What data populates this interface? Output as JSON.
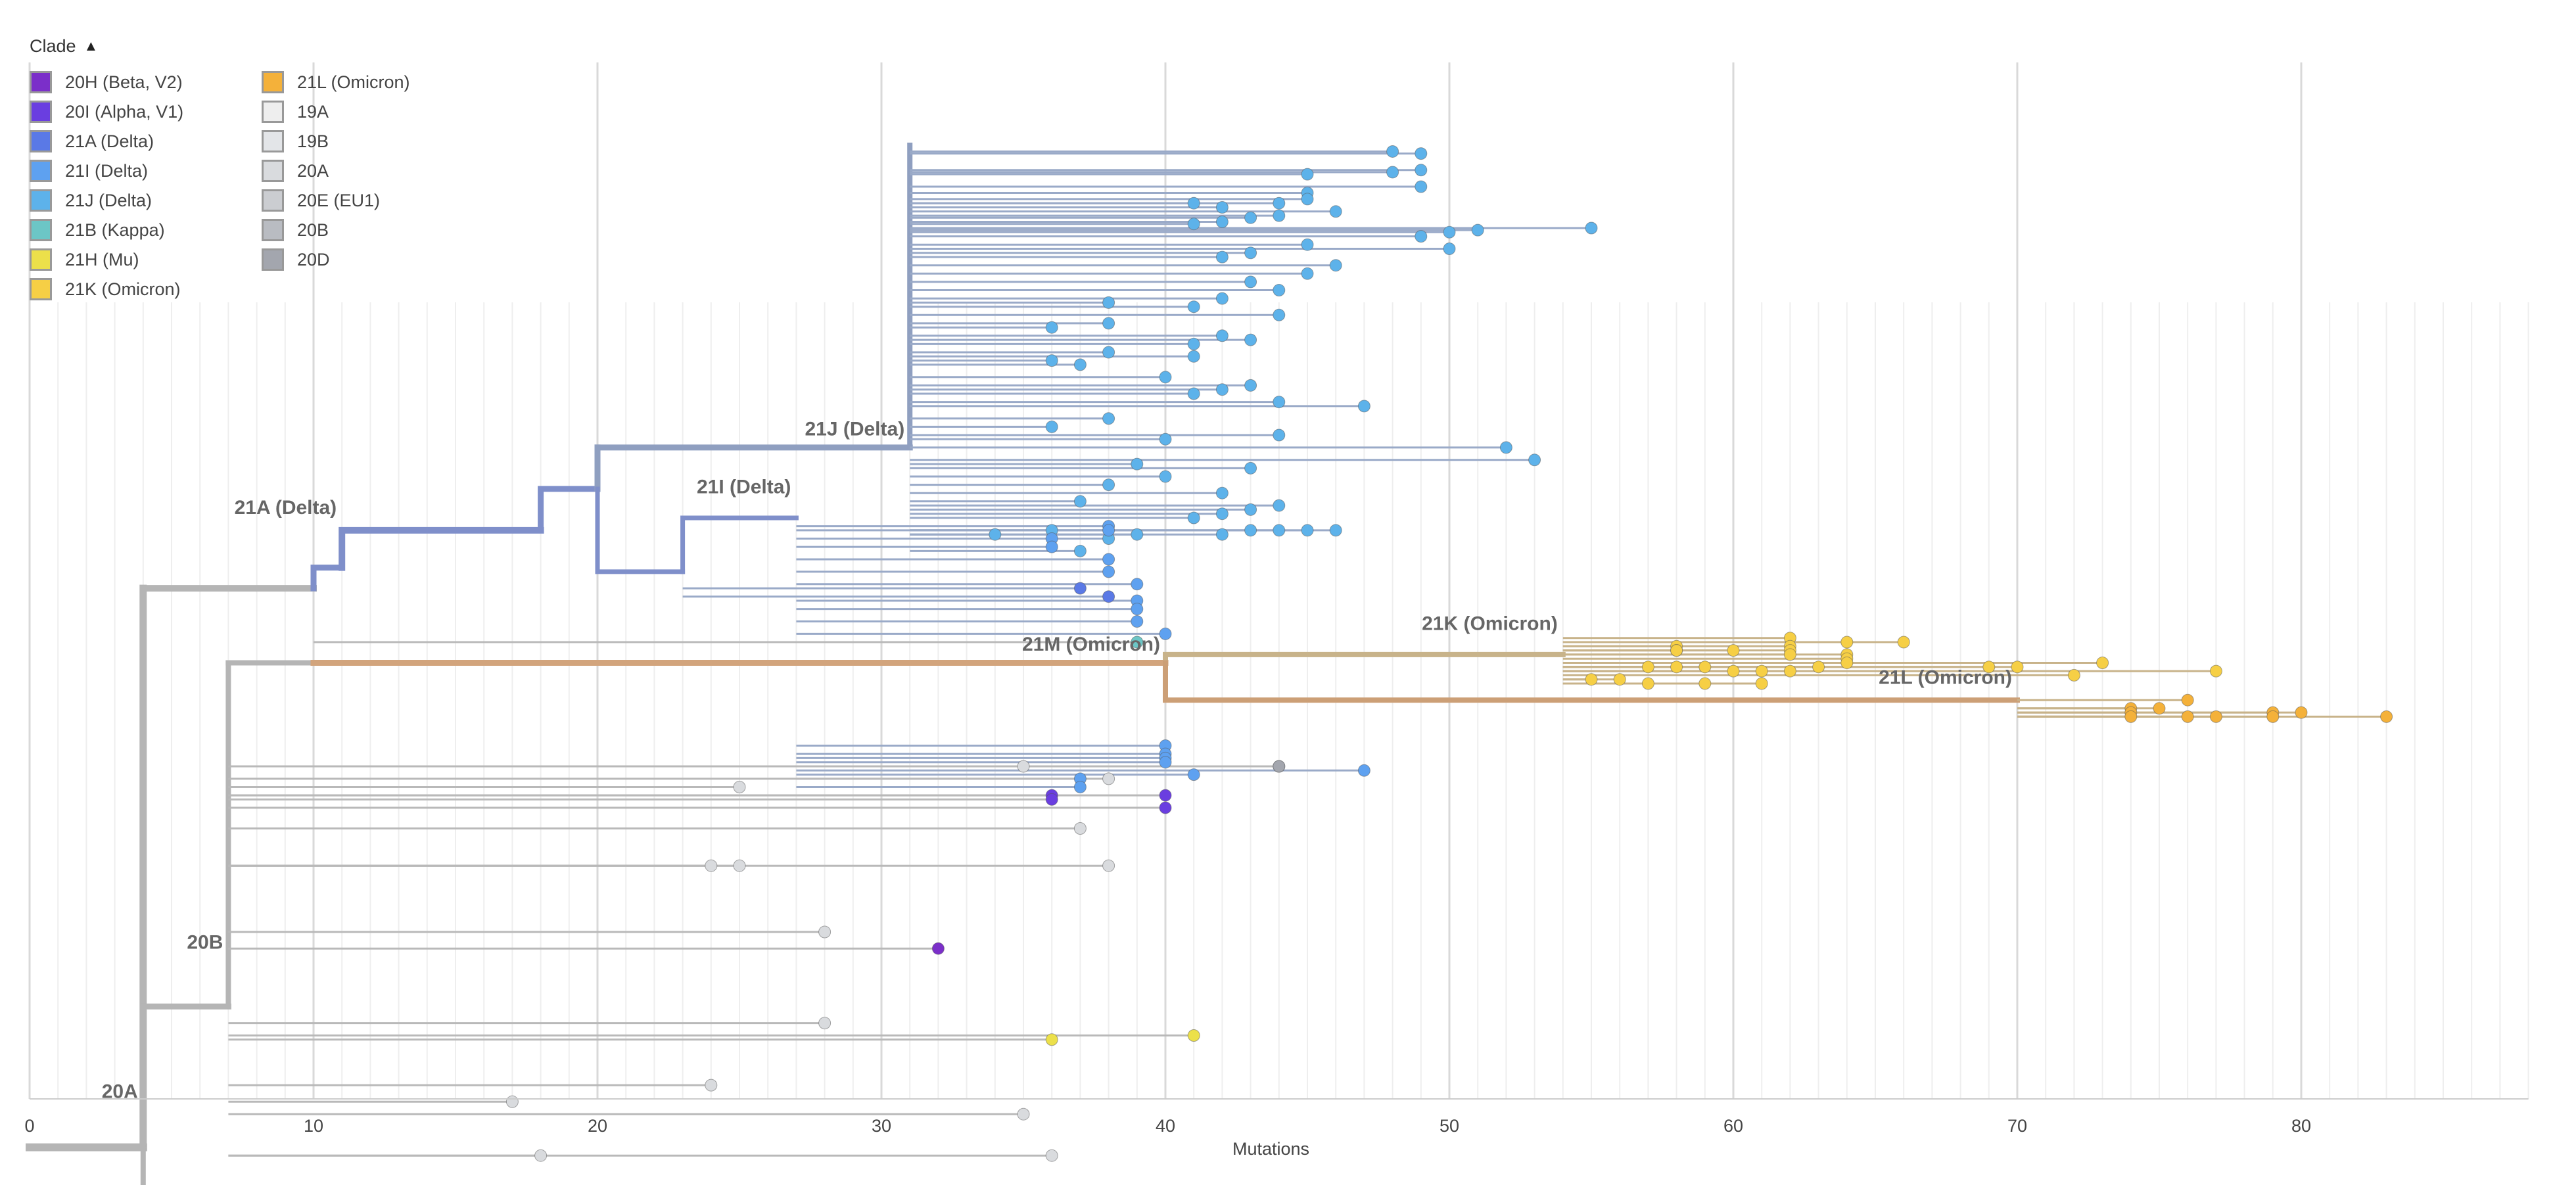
{
  "legend": {
    "title": "Clade",
    "toggle_icon": "chevron-up",
    "items": [
      {
        "label": "20H (Beta, V2)",
        "color": "#7b2fc9"
      },
      {
        "label": "20I (Alpha, V1)",
        "color": "#6a3ee0"
      },
      {
        "label": "21A (Delta)",
        "color": "#5a79e6"
      },
      {
        "label": "21I (Delta)",
        "color": "#5ea1f0"
      },
      {
        "label": "21J (Delta)",
        "color": "#5db2ea"
      },
      {
        "label": "21B (Kappa)",
        "color": "#6cc6c6"
      },
      {
        "label": "21H (Mu)",
        "color": "#ece04a"
      },
      {
        "label": "21K (Omicron)",
        "color": "#f6cf45"
      },
      {
        "label": "21L (Omicron)",
        "color": "#f4b13a"
      },
      {
        "label": "19A",
        "color": "#eeeeee"
      },
      {
        "label": "19B",
        "color": "#e3e5e8"
      },
      {
        "label": "20A",
        "color": "#d9dbde"
      },
      {
        "label": "20E (EU1)",
        "color": "#cbcdd1"
      },
      {
        "label": "20B",
        "color": "#b9bcc2"
      },
      {
        "label": "20D",
        "color": "#a3a6ae"
      }
    ]
  },
  "chart_data": {
    "type": "phylogenetic-tree",
    "xlabel": "Mutations",
    "x_ticks": [
      0,
      10,
      20,
      30,
      40,
      50,
      60,
      70,
      80
    ],
    "xlim": [
      0,
      88
    ],
    "grid": true,
    "branch_labels": [
      {
        "text": "20A",
        "x": 4
      },
      {
        "text": "20B",
        "x": 7
      },
      {
        "text": "21A (Delta)",
        "x": 11
      },
      {
        "text": "21J (Delta)",
        "x": 31
      },
      {
        "text": "21I (Delta)",
        "x": 27
      },
      {
        "text": "21M (Omicron)",
        "x": 40
      },
      {
        "text": "21K (Omicron)",
        "x": 54
      },
      {
        "text": "21L (Omicron)",
        "x": 70
      }
    ],
    "tips": [
      {
        "clade": "21J (Delta)",
        "mutations": [
          48,
          49,
          49,
          48,
          49,
          45,
          45,
          45,
          44,
          44,
          43,
          42,
          41,
          41,
          42,
          46,
          55,
          51,
          50,
          49,
          45,
          43,
          42,
          50,
          46,
          45,
          43,
          44,
          38,
          42,
          41,
          44,
          38,
          36,
          42,
          43,
          41,
          38,
          36,
          41,
          37,
          40,
          43,
          42,
          41,
          44,
          47,
          38,
          36,
          40,
          44,
          52,
          53,
          39,
          43,
          40,
          38,
          42,
          37,
          44,
          43,
          42,
          41,
          44,
          45,
          46,
          43,
          42,
          39,
          38,
          36,
          34,
          37
        ],
        "rows": [
          21.5,
          22,
          26,
          26.5,
          30,
          27,
          31.5,
          33,
          34,
          37,
          37.5,
          38.5,
          39,
          34,
          35,
          36,
          40,
          40.5,
          41,
          42,
          44,
          46,
          47,
          45,
          49,
          51,
          53,
          55,
          58,
          57,
          59,
          61,
          63,
          64,
          66,
          67,
          68,
          70,
          72,
          71,
          73,
          76,
          78,
          79,
          80,
          82,
          83,
          86,
          88,
          91,
          90,
          93,
          96,
          97,
          98,
          100,
          102,
          104,
          106,
          107,
          108,
          109,
          110,
          113,
          113,
          113,
          113,
          114,
          114,
          115,
          113,
          114,
          118
        ]
      },
      {
        "clade": "21I (Delta)",
        "mutations": [
          36,
          36,
          38,
          38,
          38,
          38,
          39,
          39,
          39,
          39,
          40,
          40,
          40,
          40,
          40,
          44,
          47,
          41,
          37,
          37
        ],
        "rows": [
          115,
          117,
          112,
          113,
          120,
          123,
          126,
          130,
          132,
          135,
          138,
          165,
          167,
          168,
          169,
          170,
          171,
          172,
          173,
          175
        ]
      },
      {
        "clade": "21A (Delta)",
        "mutations": [
          37,
          38
        ],
        "rows": [
          127,
          129
        ]
      },
      {
        "clade": "21B (Kappa)",
        "mutations": [
          39
        ],
        "rows": [
          140
        ]
      },
      {
        "clade": "21K (Omicron)",
        "mutations": [
          62,
          64,
          66,
          58,
          58,
          58,
          60,
          62,
          62,
          62,
          64,
          64,
          64,
          57,
          58,
          59,
          60,
          61,
          62,
          63,
          55,
          56,
          57,
          59,
          61,
          69,
          70,
          72,
          73,
          77
        ],
        "rows": [
          139,
          140,
          140,
          141,
          142,
          142,
          142,
          141,
          142,
          143,
          143,
          144,
          145,
          146,
          146,
          146,
          147,
          147,
          147,
          146,
          149,
          149,
          150,
          150,
          150,
          146,
          146,
          148,
          145,
          147
        ]
      },
      {
        "clade": "21L (Omicron)",
        "mutations": [
          76,
          74,
          75,
          74,
          79,
          80,
          74,
          76,
          77,
          79,
          83
        ],
        "rows": [
          154,
          156,
          156,
          157,
          157,
          157,
          158,
          158,
          158,
          158,
          158
        ]
      },
      {
        "clade": "20I (Alpha, V1)",
        "mutations": [
          36,
          36,
          40,
          40
        ],
        "rows": [
          177,
          178,
          177,
          180
        ]
      },
      {
        "clade": "20H (Beta, V2)",
        "mutations": [
          32
        ],
        "rows": [
          214
        ]
      },
      {
        "clade": "21H (Mu)",
        "mutations": [
          36,
          41
        ],
        "rows": [
          236,
          235
        ]
      },
      {
        "clade": "20A",
        "mutations": [
          35,
          38,
          25,
          37,
          24,
          25,
          38,
          24,
          17,
          35,
          36,
          18,
          28,
          28
        ],
        "rows": [
          170,
          173,
          175,
          185,
          194,
          194,
          194,
          247,
          251,
          254,
          264,
          264,
          210,
          232
        ]
      },
      {
        "clade": "20D",
        "mutations": [
          44
        ],
        "rows": [
          170
        ]
      }
    ]
  }
}
